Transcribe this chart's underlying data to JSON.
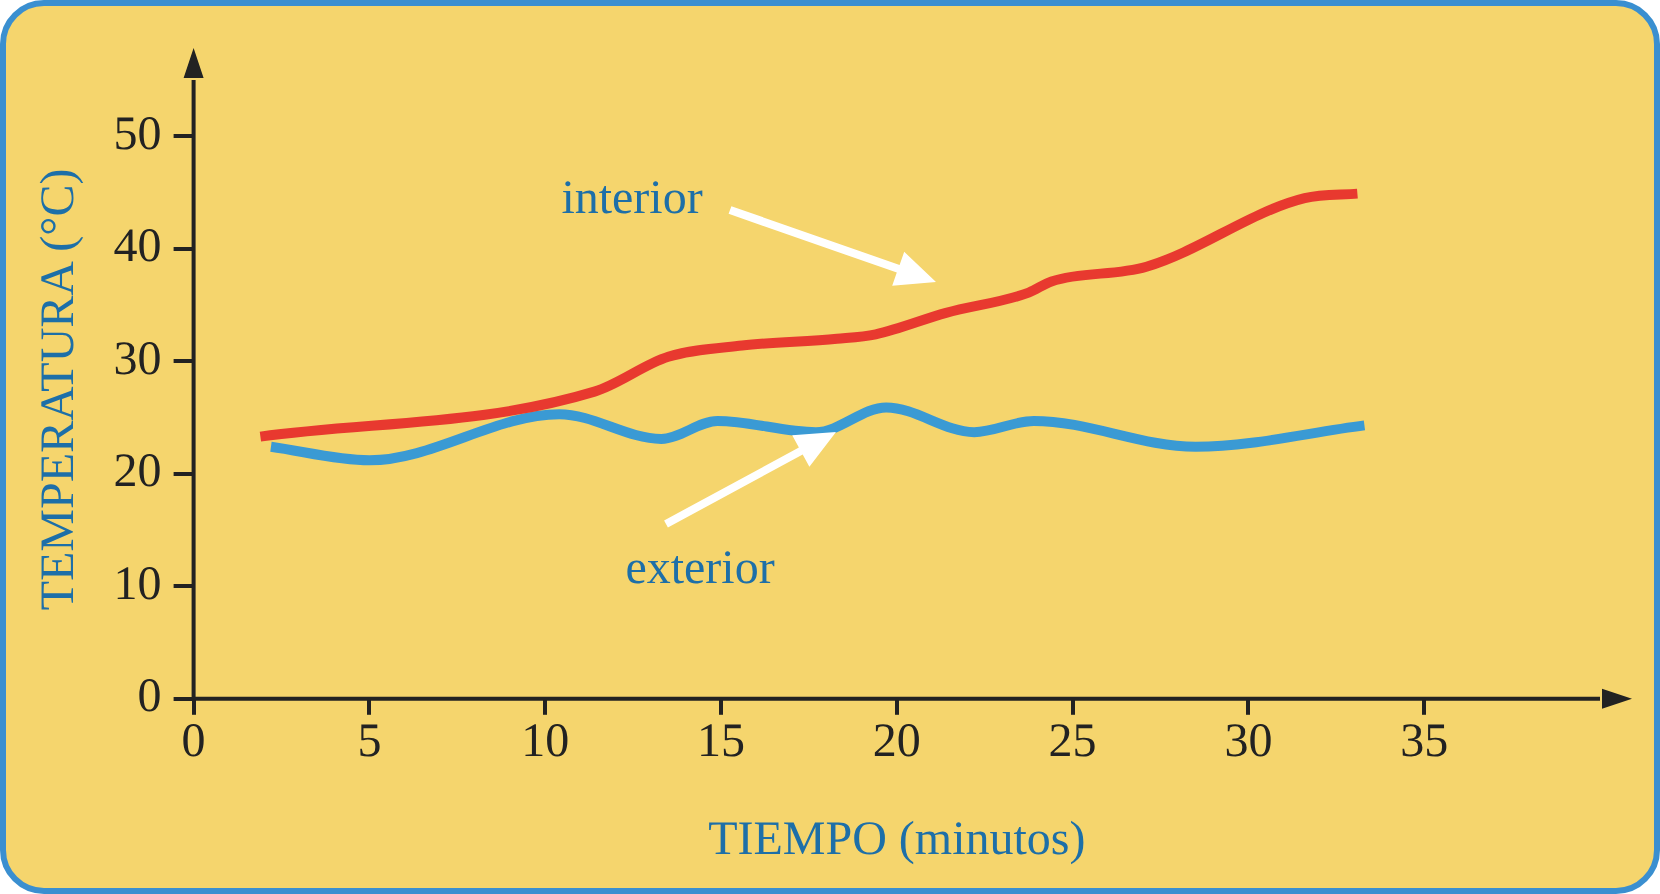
{
  "chart_data": {
    "type": "line",
    "xlabel": "TIEMPO (minutos)",
    "ylabel": "TEMPERATURA (°C)",
    "xlim": [
      0,
      40
    ],
    "xticks": [
      0,
      5,
      10,
      15,
      20,
      25,
      30,
      35
    ],
    "ylim": [
      0,
      55
    ],
    "yticks": [
      0,
      10,
      20,
      30,
      40,
      50
    ],
    "grid": false,
    "legend": false,
    "marker": "none",
    "line_style": "solid",
    "series": [
      {
        "name": "interior",
        "color": "#e8392f",
        "x": [
          1.9,
          11.4,
          13.5,
          15.6,
          18.3,
          19.4,
          21.4,
          23.75,
          24.4,
          27.1,
          31.6,
          33.1
        ],
        "values": [
          23.3,
          27.3,
          30.4,
          31.4,
          32,
          32.4,
          34.3,
          36.1,
          37.1,
          38.4,
          44.5,
          44.9
        ]
      },
      {
        "name": "exterior",
        "color": "#3a9ad4",
        "x": [
          2.2,
          5.0,
          10.4,
          13.3,
          14.9,
          17.7,
          19.7,
          22.2,
          23.9,
          28.5,
          33.3
        ],
        "values": [
          22.4,
          21.2,
          25.3,
          23.1,
          24.7,
          23.7,
          25.9,
          23.7,
          24.7,
          22.4,
          24.3
        ]
      }
    ]
  }
}
